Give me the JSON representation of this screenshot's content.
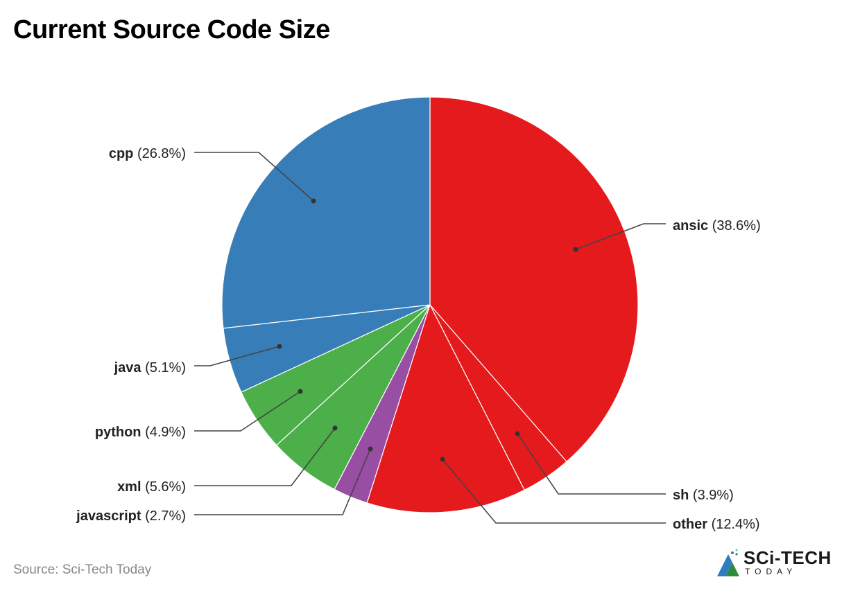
{
  "title": "Current Source Code Size",
  "source": "Source: Sci-Tech Today",
  "logo": {
    "main": "SCi-TECH",
    "sub": "TODAY"
  },
  "colors": {
    "ansic": "#E41A1C",
    "sh": "#E41A1C",
    "other": "#E41A1C",
    "javascript": "#984EA3",
    "xml": "#4DAF4A",
    "python": "#4DAF4A",
    "java": "#377EB8",
    "cpp": "#377EB8"
  },
  "labels": [
    {
      "name": "ansic",
      "pct": "(38.6%)"
    },
    {
      "name": "sh",
      "pct": "(3.9%)"
    },
    {
      "name": "other",
      "pct": "(12.4%)"
    },
    {
      "name": "javascript",
      "pct": "(2.7%)"
    },
    {
      "name": "xml",
      "pct": "(5.6%)"
    },
    {
      "name": "python",
      "pct": "(4.9%)"
    },
    {
      "name": "java",
      "pct": "(5.1%)"
    },
    {
      "name": "cpp",
      "pct": "(26.8%)"
    }
  ],
  "chart_data": {
    "type": "pie",
    "title": "Current Source Code Size",
    "categories": [
      "ansic",
      "sh",
      "other",
      "javascript",
      "xml",
      "python",
      "java",
      "cpp"
    ],
    "values": [
      38.6,
      3.9,
      12.4,
      2.7,
      5.6,
      4.9,
      5.1,
      26.8
    ],
    "colors": [
      "#E41A1C",
      "#E41A1C",
      "#E41A1C",
      "#984EA3",
      "#4DAF4A",
      "#4DAF4A",
      "#377EB8",
      "#377EB8"
    ],
    "unit": "%",
    "start_angle": "12 o'clock, clockwise",
    "legend": "callout labels",
    "source": "Source: Sci-Tech Today"
  }
}
